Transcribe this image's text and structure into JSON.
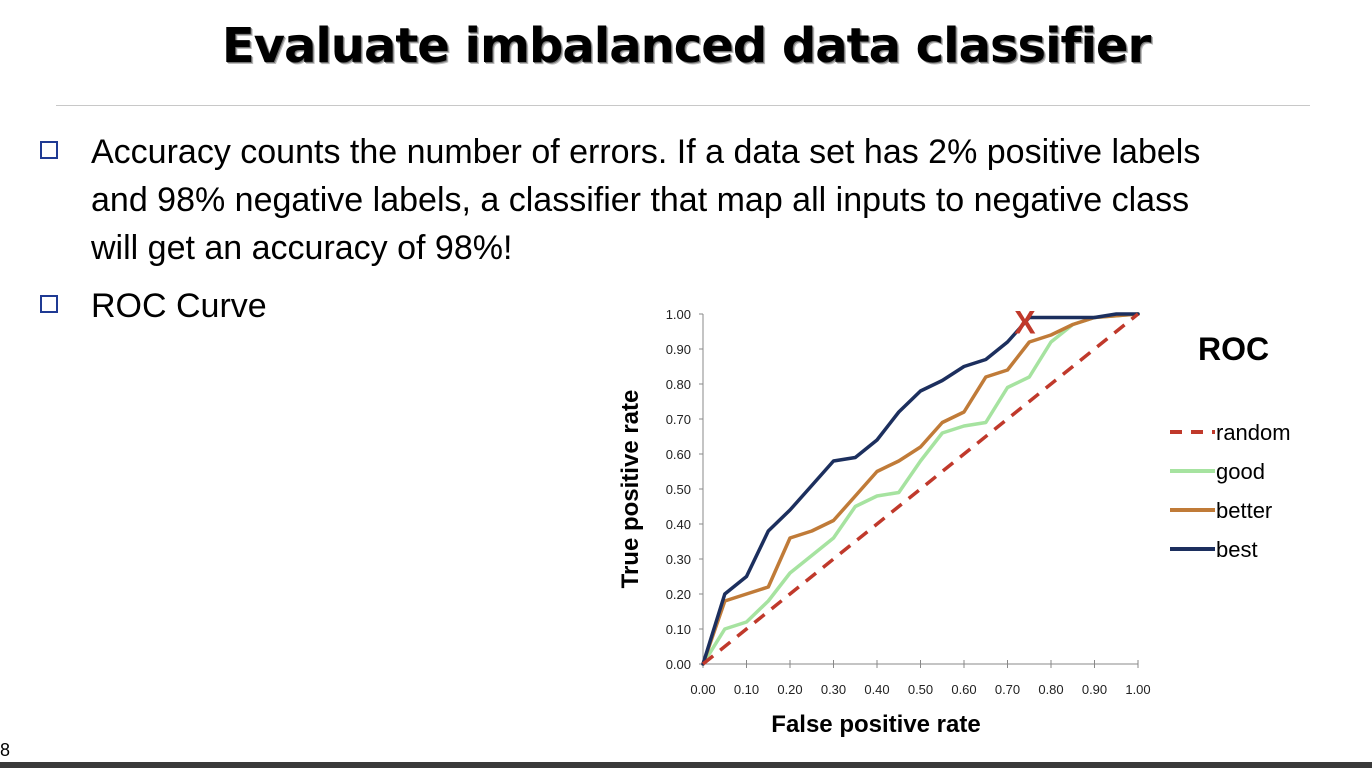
{
  "slide": {
    "title": "Evaluate imbalanced data classifier",
    "bullets": [
      {
        "lines": [
          "Accuracy counts the number of errors. If a data set has 2% positive labels",
          "and 98% negative labels, a classifier that map all inputs to negative class",
          "will get an accuracy of 98%!"
        ]
      },
      {
        "lines": [
          "ROC Curve"
        ]
      }
    ],
    "page_number": "8"
  },
  "chart_data": {
    "type": "line",
    "title": "",
    "legend_title": "ROC",
    "xlabel": "False positive rate",
    "ylabel": "True positive rate",
    "xlim": [
      0,
      1
    ],
    "ylim": [
      0,
      1
    ],
    "x_ticks": [
      "0.00",
      "0.10",
      "0.20",
      "0.30",
      "0.40",
      "0.50",
      "0.60",
      "0.70",
      "0.80",
      "0.90",
      "1.00"
    ],
    "y_ticks": [
      "0.00",
      "0.10",
      "0.20",
      "0.30",
      "0.40",
      "0.50",
      "0.60",
      "0.70",
      "0.80",
      "0.90",
      "1.00"
    ],
    "legend_position": "right",
    "grid": false,
    "annotation": {
      "text": "X",
      "x": 0.74,
      "y": 0.99,
      "color": "#c0392b"
    },
    "series": [
      {
        "name": "random",
        "color": "#c0392b",
        "dashed": true,
        "points": [
          [
            0,
            0
          ],
          [
            1,
            1
          ]
        ]
      },
      {
        "name": "good",
        "color": "#a6e3a0",
        "dashed": false,
        "points": [
          [
            0,
            0
          ],
          [
            0.05,
            0.1
          ],
          [
            0.1,
            0.12
          ],
          [
            0.15,
            0.18
          ],
          [
            0.2,
            0.26
          ],
          [
            0.25,
            0.31
          ],
          [
            0.3,
            0.36
          ],
          [
            0.35,
            0.45
          ],
          [
            0.4,
            0.48
          ],
          [
            0.45,
            0.49
          ],
          [
            0.5,
            0.58
          ],
          [
            0.55,
            0.66
          ],
          [
            0.6,
            0.68
          ],
          [
            0.65,
            0.69
          ],
          [
            0.7,
            0.79
          ],
          [
            0.75,
            0.82
          ],
          [
            0.8,
            0.92
          ],
          [
            0.85,
            0.97
          ],
          [
            0.9,
            0.99
          ],
          [
            1.0,
            1.0
          ]
        ]
      },
      {
        "name": "better",
        "color": "#c07b38",
        "dashed": false,
        "points": [
          [
            0,
            0
          ],
          [
            0.05,
            0.18
          ],
          [
            0.1,
            0.2
          ],
          [
            0.15,
            0.22
          ],
          [
            0.2,
            0.36
          ],
          [
            0.25,
            0.38
          ],
          [
            0.3,
            0.41
          ],
          [
            0.35,
            0.48
          ],
          [
            0.4,
            0.55
          ],
          [
            0.45,
            0.58
          ],
          [
            0.5,
            0.62
          ],
          [
            0.55,
            0.69
          ],
          [
            0.6,
            0.72
          ],
          [
            0.65,
            0.82
          ],
          [
            0.7,
            0.84
          ],
          [
            0.75,
            0.92
          ],
          [
            0.8,
            0.94
          ],
          [
            0.85,
            0.97
          ],
          [
            0.9,
            0.99
          ],
          [
            1.0,
            1.0
          ]
        ]
      },
      {
        "name": "best",
        "color": "#1c2f5e",
        "dashed": false,
        "points": [
          [
            0,
            0
          ],
          [
            0.05,
            0.2
          ],
          [
            0.1,
            0.25
          ],
          [
            0.15,
            0.38
          ],
          [
            0.2,
            0.44
          ],
          [
            0.25,
            0.51
          ],
          [
            0.3,
            0.58
          ],
          [
            0.35,
            0.59
          ],
          [
            0.4,
            0.64
          ],
          [
            0.45,
            0.72
          ],
          [
            0.5,
            0.78
          ],
          [
            0.55,
            0.81
          ],
          [
            0.6,
            0.85
          ],
          [
            0.65,
            0.87
          ],
          [
            0.7,
            0.92
          ],
          [
            0.75,
            0.99
          ],
          [
            0.8,
            0.99
          ],
          [
            0.85,
            0.99
          ],
          [
            0.9,
            0.99
          ],
          [
            0.95,
            1.0
          ],
          [
            1.0,
            1.0
          ]
        ]
      }
    ]
  }
}
